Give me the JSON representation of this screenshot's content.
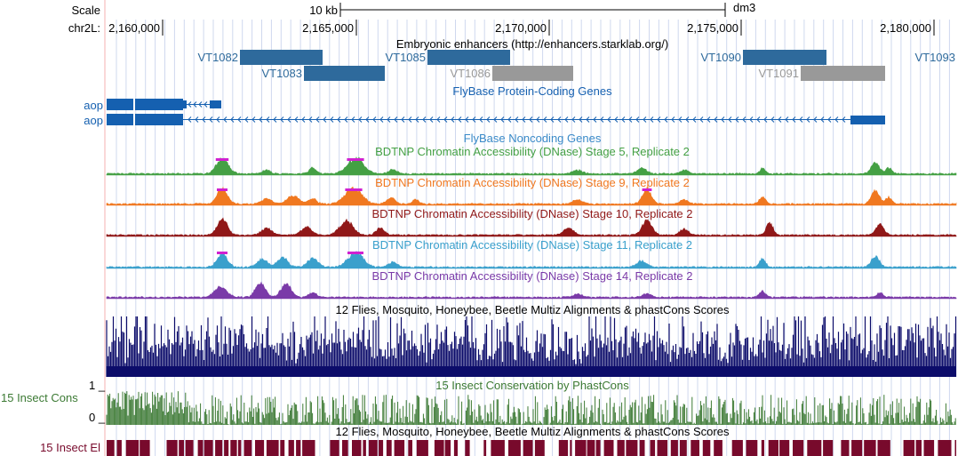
{
  "ruler": {
    "scale_label": "Scale",
    "scale_bar_label": "10 kb",
    "assembly": "dm3",
    "chrom_label": "chr2L:",
    "positions": [
      "2,160,000",
      "2,165,000",
      "2,170,000",
      "2,175,000",
      "2,180,000"
    ]
  },
  "tracks": {
    "enhancers": {
      "title": "Embryonic enhancers (http://enhancers.starklab.org/)",
      "items": [
        {
          "name": "VT1082",
          "gray": false
        },
        {
          "name": "VT1083",
          "gray": false
        },
        {
          "name": "VT1085",
          "gray": false
        },
        {
          "name": "VT1086",
          "gray": true
        },
        {
          "name": "VT1090",
          "gray": false
        },
        {
          "name": "VT1091",
          "gray": true
        },
        {
          "name": "VT1093",
          "gray": false
        }
      ]
    },
    "coding_genes": {
      "title": "FlyBase Protein-Coding Genes",
      "gene_labels": [
        "aop",
        "aop"
      ]
    },
    "noncoding_genes": {
      "title": "FlyBase Noncoding Genes"
    },
    "dnase": [
      {
        "title": "BDTNP Chromatin Accessibility (DNase) Stage 5, Replicate 2",
        "color": "#44a044"
      },
      {
        "title": "BDTNP Chromatin Accessibility (DNase) Stage 9, Replicate 2",
        "color": "#f07820"
      },
      {
        "title": "BDTNP Chromatin Accessibility (DNase) Stage 10, Replicate 2",
        "color": "#901818"
      },
      {
        "title": "BDTNP Chromatin Accessibility (DNase) Stage 11, Replicate 2",
        "color": "#3aa0cc"
      },
      {
        "title": "BDTNP Chromatin Accessibility (DNase) Stage 14, Replicate 2",
        "color": "#7a3aa8"
      }
    ],
    "multiz": {
      "title": "12 Flies, Mosquito, Honeybee, Beetle Multiz Alignments & phastCons Scores",
      "color": "#0c0c6a"
    },
    "phastcons": {
      "title": "15 Insect Conservation by PhastCons",
      "side_label": "15 Insect Cons",
      "axis_max": "1 _",
      "axis_min": "0 _",
      "color": "#3c7a34"
    },
    "elements": {
      "title": "12 Flies, Mosquito, Honeybee, Beetle Multiz Alignments & phastCons Scores",
      "side_label": "15 Insect El",
      "color": "#780a2c"
    }
  },
  "colors": {
    "enhancer_blue": "#2e6a9c",
    "enhancer_gray": "#999999",
    "gene_blue": "#1560b0",
    "peak_cap": "#d020d0",
    "guide": "#cfd8ee",
    "left_margin_rule": "#f4b0b0"
  }
}
